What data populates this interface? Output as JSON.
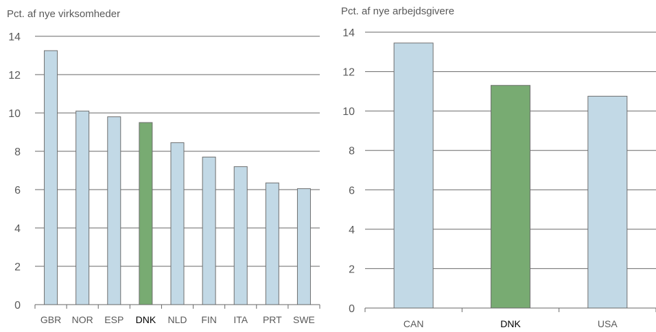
{
  "chart_data": [
    {
      "type": "bar",
      "ylabel": "Pct. af nye virksomheder",
      "categories": [
        "GBR",
        "NOR",
        "ESP",
        "DNK",
        "NLD",
        "FIN",
        "ITA",
        "PRT",
        "SWE"
      ],
      "values": [
        13.25,
        10.1,
        9.8,
        9.5,
        8.45,
        7.7,
        7.2,
        6.35,
        6.05
      ],
      "highlight": "DNK",
      "ylim": [
        0,
        14
      ],
      "yticks": [
        0,
        2,
        4,
        6,
        8,
        10,
        12,
        14
      ],
      "grid": true,
      "colors": {
        "bar": "#c2d9e6",
        "highlight": "#78ab72",
        "bar_edge": "#6e6e6e",
        "grid": "#666666",
        "text": "#595959",
        "highlight_text": "#000000"
      }
    },
    {
      "type": "bar",
      "ylabel": "Pct. af nye arbejdsgivere",
      "categories": [
        "CAN",
        "DNK",
        "USA"
      ],
      "values": [
        13.45,
        11.3,
        10.75
      ],
      "highlight": "DNK",
      "ylim": [
        0,
        14
      ],
      "yticks": [
        0,
        2,
        4,
        6,
        8,
        10,
        12,
        14
      ],
      "grid": true,
      "colors": {
        "bar": "#c2d9e6",
        "highlight": "#78ab72",
        "bar_edge": "#6e6e6e",
        "grid": "#666666",
        "text": "#595959",
        "highlight_text": "#000000"
      }
    }
  ]
}
